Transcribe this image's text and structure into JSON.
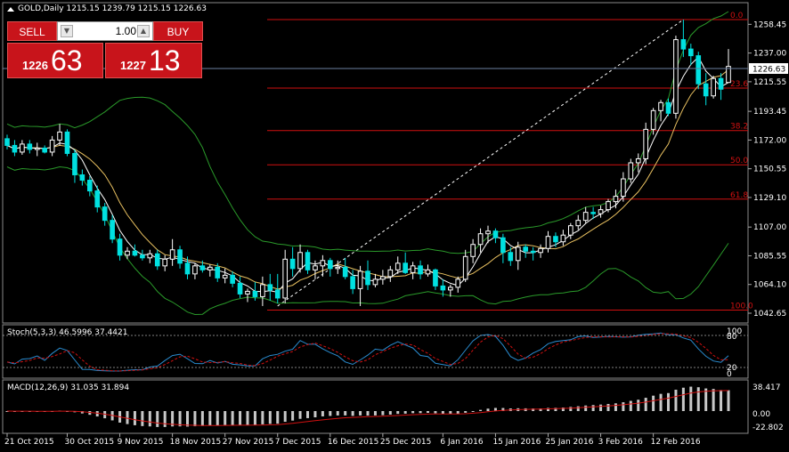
{
  "header": {
    "symbol_title": "GOLD,Daily  1215.15 1239.79 1215.15 1226.63"
  },
  "trade_panel": {
    "sell_label": "SELL",
    "buy_label": "BUY",
    "lot_value": "1.00",
    "sell_price_small": "1226",
    "sell_price_big": "63",
    "buy_price_small": "1227",
    "buy_price_big": "13"
  },
  "price_axis": {
    "labels": [
      "1258.45",
      "1237.00",
      "1215.55",
      "1193.45",
      "1172.00",
      "1150.55",
      "1129.10",
      "1107.00",
      "1085.55",
      "1064.10",
      "1042.65"
    ],
    "current_price": "1226.63"
  },
  "fibonacci": {
    "levels": [
      "0.0",
      "23.6",
      "38.2",
      "50.0",
      "61.8",
      "100.0"
    ]
  },
  "stoch": {
    "title": "Stoch(5,3,3) 46.5996 37.4421",
    "axis_labels": [
      "100",
      "80",
      "20",
      "0"
    ]
  },
  "macd": {
    "title": "MACD(12,26,9) 31.035 31.894",
    "axis_labels": [
      "38.417",
      "0.00",
      "-22.802"
    ]
  },
  "time_axis": {
    "labels": [
      "21 Oct 2015",
      "30 Oct 2015",
      "9 Nov 2015",
      "18 Nov 2015",
      "27 Nov 2015",
      "7 Dec 2015",
      "16 Dec 2015",
      "25 Dec 2015",
      "6 Jan 2016",
      "15 Jan 2016",
      "25 Jan 2016",
      "3 Feb 2016",
      "12 Feb 2016"
    ]
  },
  "colors": {
    "bull": "#ffffff",
    "bear": "#00e0e0",
    "fib": "#d01010",
    "band": "#2a9a2a",
    "ma_fast": "#ffffff",
    "ma_slow": "#e8c060",
    "grid_line": "#ffffff",
    "panel_red": "#c8141b"
  },
  "chart_data": {
    "type": "candlestick",
    "ylim": [
      1042.65,
      1262
    ],
    "candles": [
      [
        1173,
        1176,
        1165,
        1168
      ],
      [
        1168,
        1172,
        1160,
        1163
      ],
      [
        1163,
        1172,
        1161,
        1169
      ],
      [
        1169,
        1172,
        1162,
        1165
      ],
      [
        1165,
        1170,
        1160,
        1166
      ],
      [
        1166,
        1168,
        1162,
        1163
      ],
      [
        1163,
        1175,
        1160,
        1172
      ],
      [
        1172,
        1184,
        1168,
        1178
      ],
      [
        1178,
        1180,
        1160,
        1162
      ],
      [
        1162,
        1165,
        1140,
        1146
      ],
      [
        1146,
        1150,
        1138,
        1142
      ],
      [
        1142,
        1145,
        1130,
        1134
      ],
      [
        1134,
        1138,
        1118,
        1122
      ],
      [
        1122,
        1125,
        1108,
        1112
      ],
      [
        1112,
        1116,
        1095,
        1098
      ],
      [
        1098,
        1102,
        1082,
        1086
      ],
      [
        1086,
        1092,
        1083,
        1089
      ],
      [
        1089,
        1094,
        1085,
        1086
      ],
      [
        1086,
        1090,
        1082,
        1084
      ],
      [
        1084,
        1090,
        1080,
        1087
      ],
      [
        1087,
        1090,
        1075,
        1078
      ],
      [
        1078,
        1086,
        1074,
        1083
      ],
      [
        1083,
        1098,
        1078,
        1090
      ],
      [
        1090,
        1093,
        1076,
        1080
      ],
      [
        1080,
        1085,
        1068,
        1072
      ],
      [
        1072,
        1080,
        1068,
        1078
      ],
      [
        1078,
        1082,
        1073,
        1075
      ],
      [
        1075,
        1079,
        1070,
        1077
      ],
      [
        1077,
        1080,
        1066,
        1069
      ],
      [
        1069,
        1076,
        1065,
        1071
      ],
      [
        1071,
        1074,
        1062,
        1065
      ],
      [
        1065,
        1070,
        1054,
        1057
      ],
      [
        1057,
        1061,
        1051,
        1059
      ],
      [
        1059,
        1066,
        1052,
        1055
      ],
      [
        1055,
        1070,
        1048,
        1064
      ],
      [
        1064,
        1072,
        1052,
        1060
      ],
      [
        1060,
        1072,
        1050,
        1054
      ],
      [
        1054,
        1090,
        1050,
        1083
      ],
      [
        1083,
        1092,
        1070,
        1076
      ],
      [
        1076,
        1094,
        1073,
        1088
      ],
      [
        1088,
        1090,
        1072,
        1075
      ],
      [
        1075,
        1082,
        1068,
        1078
      ],
      [
        1078,
        1086,
        1070,
        1082
      ],
      [
        1082,
        1084,
        1070,
        1076
      ],
      [
        1076,
        1082,
        1072,
        1077
      ],
      [
        1077,
        1084,
        1068,
        1070
      ],
      [
        1070,
        1075,
        1057,
        1061
      ],
      [
        1061,
        1078,
        1048,
        1074
      ],
      [
        1074,
        1082,
        1060,
        1064
      ],
      [
        1064,
        1072,
        1062,
        1068
      ],
      [
        1068,
        1075,
        1064,
        1070
      ],
      [
        1070,
        1078,
        1066,
        1075
      ],
      [
        1075,
        1085,
        1072,
        1080
      ],
      [
        1080,
        1088,
        1072,
        1073
      ],
      [
        1073,
        1081,
        1068,
        1078
      ],
      [
        1078,
        1082,
        1068,
        1072
      ],
      [
        1072,
        1079,
        1070,
        1075
      ],
      [
        1075,
        1076,
        1060,
        1063
      ],
      [
        1063,
        1068,
        1055,
        1060
      ],
      [
        1060,
        1064,
        1055,
        1062
      ],
      [
        1062,
        1070,
        1058,
        1068
      ],
      [
        1068,
        1090,
        1066,
        1085
      ],
      [
        1085,
        1098,
        1080,
        1094
      ],
      [
        1094,
        1106,
        1088,
        1102
      ],
      [
        1102,
        1108,
        1095,
        1104
      ],
      [
        1104,
        1106,
        1095,
        1099
      ],
      [
        1099,
        1102,
        1080,
        1088
      ],
      [
        1088,
        1092,
        1078,
        1082
      ],
      [
        1082,
        1096,
        1075,
        1092
      ],
      [
        1092,
        1094,
        1084,
        1089
      ],
      [
        1089,
        1092,
        1082,
        1088
      ],
      [
        1088,
        1094,
        1084,
        1091
      ],
      [
        1091,
        1104,
        1088,
        1100
      ],
      [
        1100,
        1103,
        1092,
        1096
      ],
      [
        1096,
        1105,
        1093,
        1101
      ],
      [
        1101,
        1110,
        1098,
        1108
      ],
      [
        1108,
        1116,
        1105,
        1112
      ],
      [
        1112,
        1122,
        1110,
        1118
      ],
      [
        1118,
        1122,
        1113,
        1117
      ],
      [
        1117,
        1123,
        1114,
        1120
      ],
      [
        1120,
        1128,
        1118,
        1126
      ],
      [
        1126,
        1135,
        1121,
        1130
      ],
      [
        1130,
        1148,
        1126,
        1143
      ],
      [
        1143,
        1158,
        1140,
        1155
      ],
      [
        1155,
        1162,
        1148,
        1158
      ],
      [
        1158,
        1185,
        1154,
        1180
      ],
      [
        1180,
        1196,
        1176,
        1194
      ],
      [
        1194,
        1202,
        1186,
        1200
      ],
      [
        1200,
        1203,
        1190,
        1192
      ],
      [
        1192,
        1250,
        1188,
        1247
      ],
      [
        1247,
        1262,
        1234,
        1240
      ],
      [
        1240,
        1244,
        1228,
        1235
      ],
      [
        1235,
        1238,
        1210,
        1214
      ],
      [
        1214,
        1222,
        1198,
        1205
      ],
      [
        1205,
        1220,
        1203,
        1218
      ],
      [
        1218,
        1222,
        1202,
        1210
      ],
      [
        1215,
        1240,
        1215,
        1227
      ]
    ]
  }
}
